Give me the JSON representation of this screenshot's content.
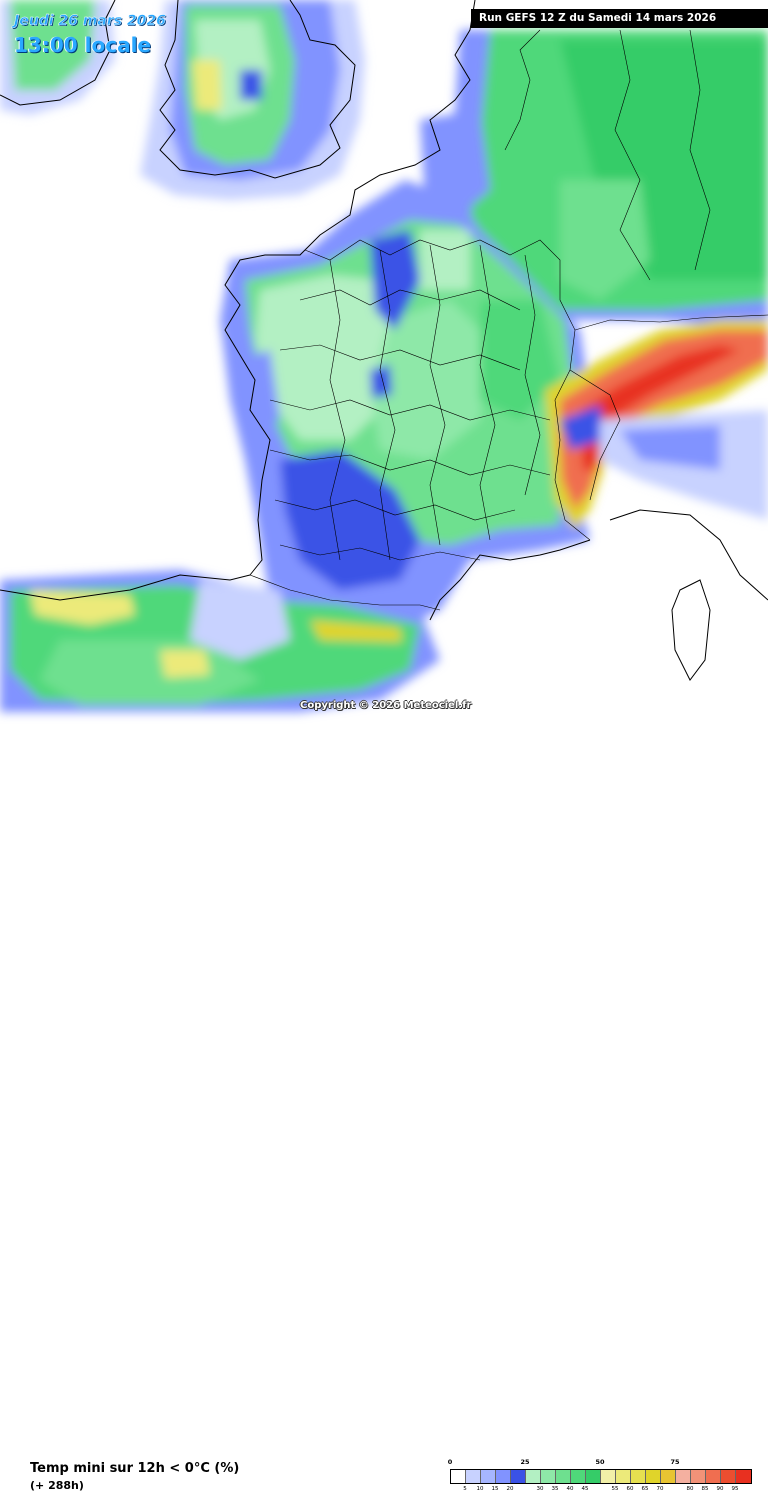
{
  "header": {
    "date": "Jeudi 26 mars 2026",
    "time": "13:00 locale",
    "run": "Run GEFS 12 Z du Samedi 14 mars 2026"
  },
  "copyright": "Copyright © 2026 Meteociel.fr",
  "footer": {
    "title": "Temp mini sur 12h < 0°C (%)",
    "lead": "(+ 288h)"
  },
  "legend": {
    "major_labels": [
      "0",
      "25",
      "50",
      "75"
    ],
    "minor_labels": [
      "5",
      "10",
      "15",
      "20",
      "",
      "30",
      "35",
      "40",
      "45",
      "",
      "55",
      "60",
      "65",
      "70",
      "",
      "80",
      "85",
      "90",
      "95"
    ],
    "colors": [
      "#ffffff",
      "#c8d2ff",
      "#a6b6ff",
      "#8193ff",
      "#3a52e6",
      "#b3f0c3",
      "#8ee8a8",
      "#6ee08f",
      "#4fd87a",
      "#35cc68",
      "#f2f0a8",
      "#ecea7a",
      "#e6e050",
      "#e0d42a",
      "#e8c432",
      "#f4b0a0",
      "#f29278",
      "#f06e50",
      "#ec4e30",
      "#e83020"
    ]
  },
  "map": {
    "sea_color": "#ffffff",
    "border_color": "#000000"
  }
}
